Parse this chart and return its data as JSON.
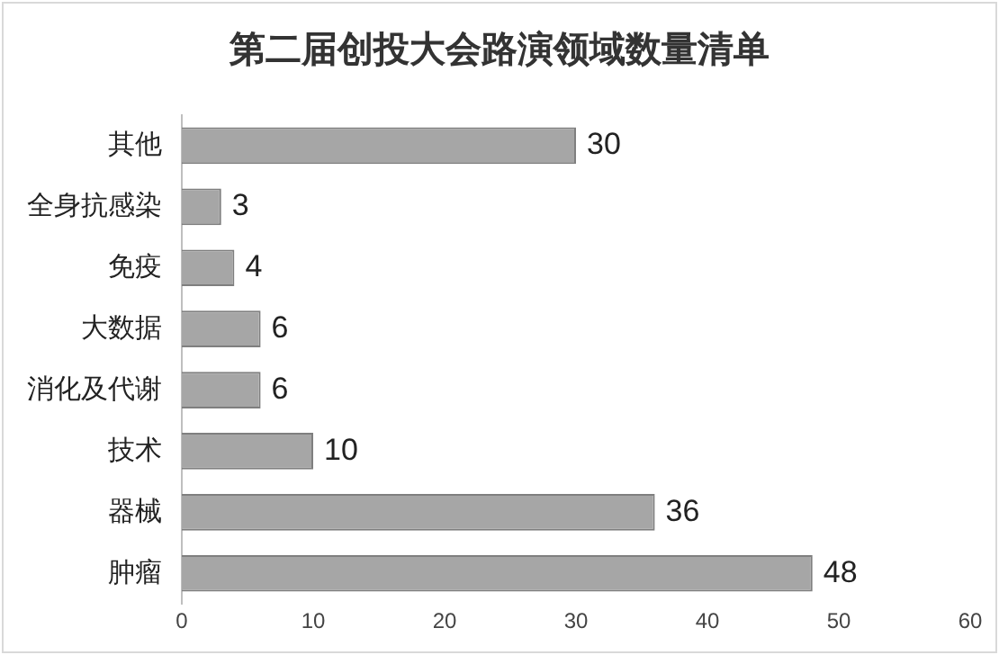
{
  "chart_data": {
    "type": "bar",
    "orientation": "horizontal",
    "title": "第二届创投大会路演领域数量清单",
    "categories": [
      "其他",
      "全身抗感染",
      "免疫",
      "大数据",
      "消化及代谢",
      "技术",
      "器械",
      "肿瘤"
    ],
    "values": [
      30,
      3,
      4,
      6,
      6,
      10,
      36,
      48
    ],
    "color": "#a6a6a6",
    "xlim": [
      0,
      60
    ],
    "xticks": [
      0,
      10,
      20,
      30,
      40,
      50,
      60
    ],
    "grid": false,
    "legend": false,
    "data_labels": true
  }
}
